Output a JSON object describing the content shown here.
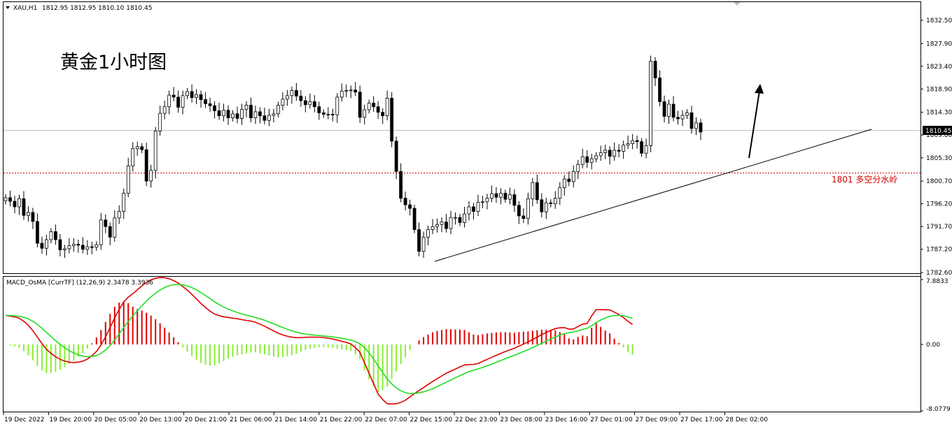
{
  "header": {
    "symbol": "XAU,H1",
    "ohlc": "1812.95 1812.95 1810.10 1810.45"
  },
  "annotation_title": "黄金1小时图",
  "support_label": "1801  多空分水岭",
  "current_price_label": "1810.45",
  "macd_label": "MACD_OsMA [CurrTF] (12,26,9) 2.3478 3.3936",
  "colors": {
    "bull_candle": "#ffffff",
    "bear_candle": "#000000",
    "support_line": "#d40000",
    "macd_line": "#e00000",
    "signal_line": "#22dd22",
    "hist_positive": "#e00000",
    "hist_negative": "#88ee33"
  },
  "chart_data": [
    {
      "type": "candlestick",
      "yticks": [
        "1832.50",
        "1827.90",
        "1823.40",
        "1818.90",
        "1814.30",
        "1809.80",
        "1805.30",
        "1800.70",
        "1796.20",
        "1791.70",
        "1787.20",
        "1782.60"
      ],
      "ylim": [
        1782.6,
        1832.5
      ],
      "xticks": [
        "19 Dec 2022",
        "19 Dec 20:00",
        "20 Dec 05:00",
        "20 Dec 13:00",
        "20 Dec 21:00",
        "21 Dec 06:00",
        "21 Dec 14:00",
        "21 Dec 22:00",
        "22 Dec 07:00",
        "22 Dec 15:00",
        "22 Dec 23:00",
        "23 Dec 08:00",
        "23 Dec 16:00",
        "27 Dec 01:00",
        "27 Dec 09:00",
        "27 Dec 17:00",
        "28 Dec 02:00"
      ],
      "horizontal_line": 1801,
      "current_price": 1810.45,
      "closes": [
        1797.4,
        1796.7,
        1795.6,
        1797.2,
        1793.9,
        1794.5,
        1792.7,
        1788.4,
        1787.4,
        1789.1,
        1790.7,
        1789.1,
        1787.1,
        1787.3,
        1787.9,
        1788.2,
        1788.0,
        1787.2,
        1787.7,
        1787.6,
        1788.1,
        1793.0,
        1791.7,
        1789.6,
        1793.4,
        1794.7,
        1798.3,
        1803.7,
        1807.1,
        1807.5,
        1806.9,
        1800.7,
        1802.8,
        1810.6,
        1814.1,
        1815.4,
        1817.7,
        1817.3,
        1815.3,
        1817.6,
        1818.4,
        1817.2,
        1817.8,
        1816.8,
        1816.0,
        1815.6,
        1814.6,
        1813.6,
        1814.7,
        1813.2,
        1814.0,
        1813.1,
        1814.9,
        1815.7,
        1813.2,
        1814.4,
        1813.6,
        1812.7,
        1813.7,
        1814.0,
        1815.7,
        1816.9,
        1817.6,
        1818.6,
        1817.5,
        1816.6,
        1815.8,
        1816.4,
        1815.4,
        1814.2,
        1813.9,
        1813.9,
        1813.8,
        1817.3,
        1818.5,
        1818.6,
        1818.7,
        1818.3,
        1813.3,
        1814.8,
        1816.1,
        1815.4,
        1814.3,
        1813.6,
        1817.1,
        1808.6,
        1802.6,
        1797.3,
        1796.0,
        1795.3,
        1791.1,
        1786.8,
        1789.6,
        1791.1,
        1791.7,
        1792.1,
        1792.6,
        1791.3,
        1793.5,
        1793.5,
        1792.5,
        1794.2,
        1795.6,
        1794.7,
        1796.5,
        1796.6,
        1797.3,
        1798.2,
        1797.5,
        1798.3,
        1797.1,
        1798.0,
        1795.9,
        1793.8,
        1793.3,
        1797.2,
        1800.4,
        1797.0,
        1794.6,
        1796.4,
        1796.2,
        1797.3,
        1799.4,
        1801.1,
        1800.6,
        1802.6,
        1804.0,
        1805.5,
        1804.4,
        1805.1,
        1805.7,
        1806.3,
        1806.8,
        1805.6,
        1806.8,
        1806.6,
        1807.8,
        1808.1,
        1808.7,
        1808.5,
        1806.2,
        1807.7,
        1824.4,
        1821.1,
        1816.4,
        1813.5,
        1815.9,
        1813.3,
        1813.0,
        1813.7,
        1814.2,
        1811.1,
        1812.2,
        1810.4
      ]
    },
    {
      "type": "macd",
      "yticks": [
        "7.8833",
        "0.00",
        "-8.0779"
      ],
      "ylim": [
        -8.0779,
        7.8833
      ],
      "macd": [
        3.53,
        3.44,
        3.35,
        3.17,
        2.81,
        2.32,
        1.68,
        0.89,
        0.11,
        -0.59,
        -1.09,
        -1.5,
        -1.81,
        -2.02,
        -2.15,
        -2.21,
        -2.14,
        -2.03,
        -1.78,
        -1.39,
        -0.85,
        -0.06,
        0.92,
        2.05,
        3.22,
        4.27,
        5.13,
        5.74,
        6.16,
        6.62,
        7.12,
        7.53,
        7.84,
        8.04,
        8.13,
        8.11,
        7.98,
        7.76,
        7.45,
        7.04,
        6.59,
        6.08,
        5.53,
        4.98,
        4.48,
        4.04,
        3.7,
        3.49,
        3.36,
        3.28,
        3.2,
        3.12,
        3.01,
        2.92,
        2.84,
        2.7,
        2.47,
        2.22,
        1.93,
        1.64,
        1.36,
        1.15,
        1.0,
        0.89,
        0.83,
        0.84,
        0.86,
        0.89,
        0.89,
        0.88,
        0.84,
        0.76,
        0.66,
        0.52,
        0.39,
        0.24,
        0.06,
        -0.39,
        -0.96,
        -2.24,
        -3.51,
        -4.77,
        -6.03,
        -6.7,
        -7.2,
        -7.24,
        -7.2,
        -7.04,
        -6.78,
        -6.37,
        -5.97,
        -5.6,
        -5.24,
        -4.87,
        -4.5,
        -4.16,
        -3.83,
        -3.5,
        -3.24,
        -2.99,
        -2.73,
        -2.49,
        -2.45,
        -2.43,
        -2.31,
        -2.06,
        -1.81,
        -1.57,
        -1.32,
        -1.08,
        -0.86,
        -0.66,
        -0.47,
        -0.21,
        0.05,
        0.3,
        0.6,
        0.89,
        1.19,
        1.45,
        1.71,
        1.92,
        2.02,
        2.04,
        1.86,
        1.88,
        2.18,
        2.46,
        2.54,
        3.45,
        4.23,
        4.22,
        4.21,
        4.2,
        3.92,
        3.63,
        3.27,
        2.8,
        2.42
      ]
    }
  ]
}
